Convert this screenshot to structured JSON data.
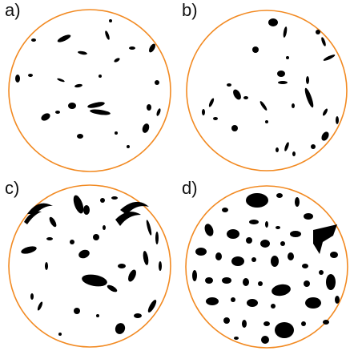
{
  "panels": [
    {
      "label": "a)",
      "density": "sparse"
    },
    {
      "label": "b)",
      "density": "sparse"
    },
    {
      "label": "c)",
      "density": "medium"
    },
    {
      "label": "d)",
      "density": "dense"
    }
  ],
  "colors": {
    "dish_outline": "#f28a22",
    "particles": "#000000",
    "background": "#ffffff"
  }
}
